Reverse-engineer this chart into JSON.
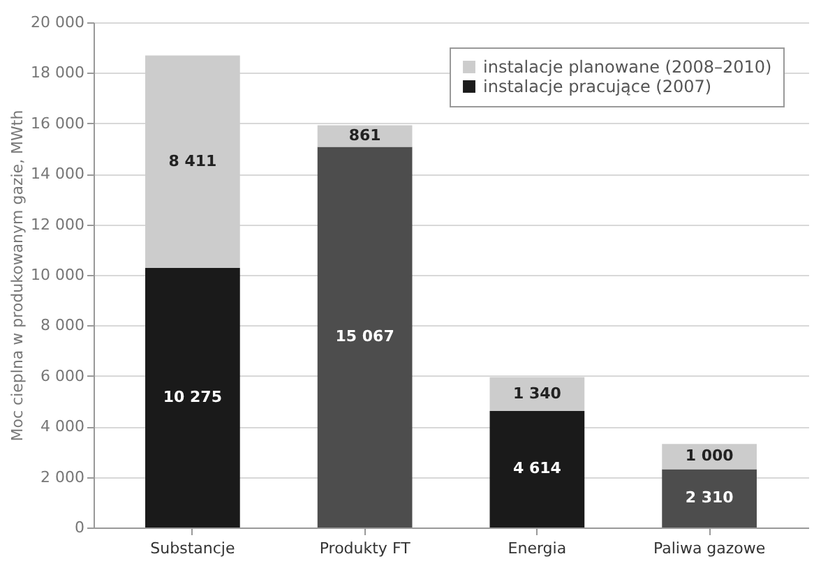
{
  "chart_data": {
    "type": "bar",
    "stacked": true,
    "ylabel": "Moc cieplna w produkowanym gazie, MWth",
    "categories": [
      "Substancje",
      "Produkty FT",
      "Energia",
      "Paliwa gazowe"
    ],
    "series": [
      {
        "name": "instalacje pracujące (2007)",
        "color": "#1a1a1a",
        "colors": [
          "#1a1a1a",
          "#4d4d4d",
          "#1a1a1a",
          "#4d4d4d"
        ],
        "values": [
          10275,
          15067,
          4614,
          2310
        ],
        "value_labels": [
          "10 275",
          "15 067",
          "4 614",
          "2 310"
        ]
      },
      {
        "name": "instalacje planowane (2008–2010)",
        "color": "#cccccc",
        "values": [
          8411,
          861,
          1340,
          1000
        ],
        "value_labels": [
          "8 411",
          "861",
          "1 340",
          "1 000"
        ]
      }
    ],
    "ylim": [
      0,
      20000
    ],
    "yticks": [
      0,
      {
        "value": 2000,
        "label": "2 000"
      },
      {
        "value": 4000,
        "label": "4 000"
      },
      {
        "value": 6000,
        "label": "6 000"
      },
      {
        "value": 8000,
        "label": "8 000"
      },
      {
        "value": 10000,
        "label": "10 000"
      },
      {
        "value": 12000,
        "label": "12 000"
      },
      {
        "value": 14000,
        "label": "14 000"
      },
      {
        "value": 16000,
        "label": "16 000"
      },
      {
        "value": 18000,
        "label": "18 000"
      },
      {
        "value": 20000,
        "label": "20 000"
      }
    ],
    "grid": "y",
    "legend": "top right"
  }
}
